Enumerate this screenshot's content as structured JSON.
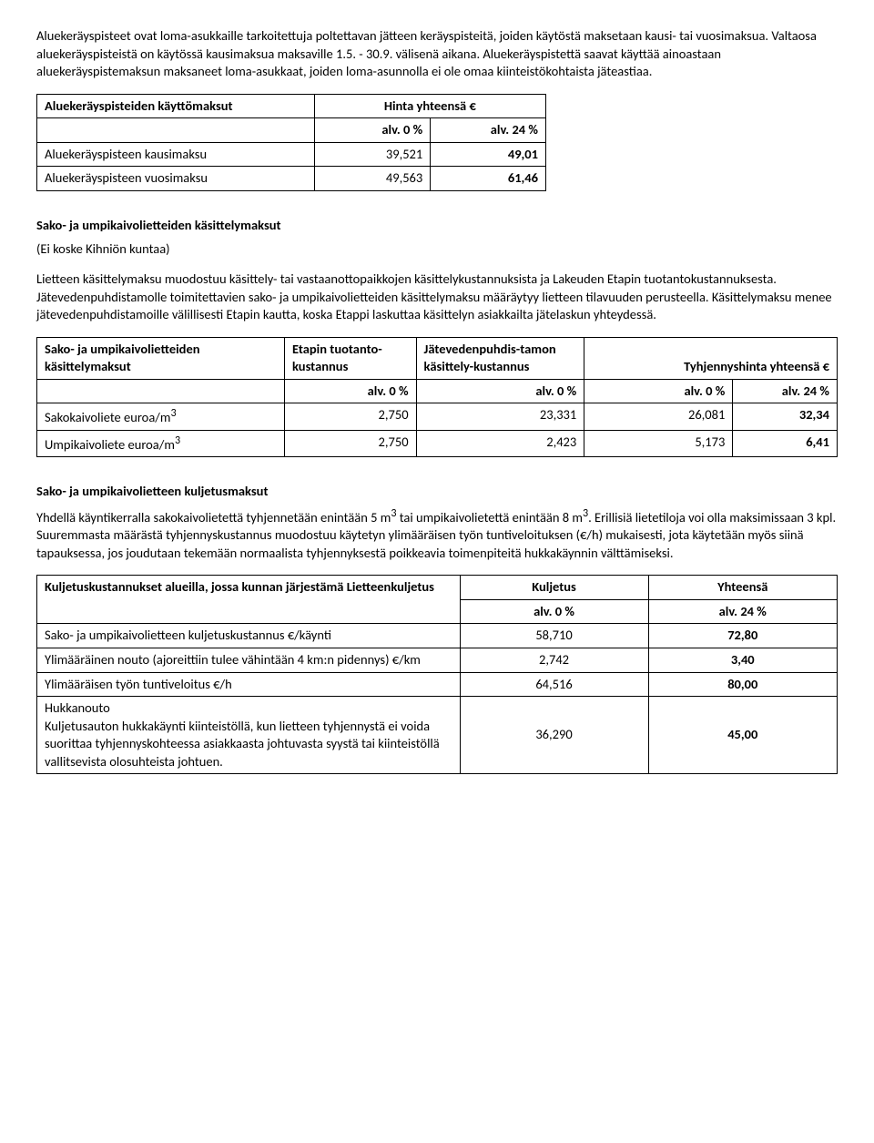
{
  "para1": "Aluekeräyspisteet ovat loma-asukkaille tarkoitettuja poltettavan jätteen keräyspisteitä, joiden käytöstä maksetaan kausi- tai vuosimaksua. Valtaosa aluekeräyspisteistä on käytössä kausimaksua maksaville 1.5. - 30.9. välisenä aikana. Aluekeräyspistettä saavat käyttää ainoastaan aluekeräyspistemaksun maksaneet loma-asukkaat, joiden loma-asunnolla ei ole omaa kiinteistökohtaista jäteastiaa.",
  "table1": {
    "h_a": "Aluekeräyspisteiden käyttömaksut",
    "h_b": "Hinta yhteensä €",
    "alv0": "alv. 0 %",
    "alv24": "alv. 24 %",
    "r1_label": "Aluekeräyspisteen kausimaksu",
    "r1_v0": "39,521",
    "r1_v24": "49,01",
    "r2_label": "Aluekeräyspisteen vuosimaksu",
    "r2_v0": "49,563",
    "r2_v24": "61,46"
  },
  "sec2_title": "Sako- ja umpikaivolietteiden käsittelymaksut",
  "sec2_sub": "(Ei koske Kihniön kuntaa)",
  "sec2_para": "Lietteen käsittelymaksu muodostuu käsittely- tai vastaanottopaikkojen käsittelykustannuksista ja Lakeuden Etapin tuotantokustannuksesta. Jätevedenpuhdistamolle toimitettavien sako- ja umpikaivolietteiden käsittelymaksu määräytyy lietteen tilavuuden perusteella. Käsittelymaksu menee jätevedenpuhdistamoille välillisesti Etapin kautta, koska Etappi laskuttaa käsittelyn asiakkailta jätelaskun yhteydessä.",
  "table2": {
    "h_a": "Sako- ja umpikaivolietteiden käsittelymaksut",
    "h_b": "Etapin tuotanto-kustannus",
    "h_c": "Jätevedenpuhdis-tamon käsittely-kustannus",
    "h_d": "Tyhjennyshinta yhteensä €",
    "alv0": "alv. 0 %",
    "alv24": "alv. 24 %",
    "r1_label_a": "Sakokaivoliete euroa/m",
    "r1_label_sup": "3",
    "r1_v1": "2,750",
    "r1_v2": "23,331",
    "r1_v3": "26,081",
    "r1_v4": "32,34",
    "r2_label_a": "Umpikaivoliete euroa/m",
    "r2_label_sup": "3",
    "r2_v1": "2,750",
    "r2_v2": "2,423",
    "r2_v3": "5,173",
    "r2_v4": "6,41"
  },
  "sec3_title": "Sako- ja umpikaivolietteen kuljetusmaksut",
  "sec3_para_a": "Yhdellä käyntikerralla sakokaivolietettä tyhjennetään enintään 5 m",
  "sec3_para_sup1": "3",
  "sec3_para_b": " tai umpikaivolietettä enintään 8 m",
  "sec3_para_sup2": "3",
  "sec3_para_c": ". Erillisiä lietetiloja voi olla maksimissaan 3 kpl. Suuremmasta määrästä tyhjennyskustannus muodostuu käytetyn ylimääräisen työn tuntiveloituksen (€/h) mukaisesti, jota käytetään myös siinä tapauksessa, jos joudutaan tekemään normaalista tyhjennyksestä poikkeavia toimenpiteitä hukkakäynnin välttämiseksi.",
  "table3": {
    "h_a": "Kuljetuskustannukset alueilla, jossa kunnan järjestämä Lietteenkuljetus",
    "h_b": "Kuljetus",
    "h_c": "Yhteensä",
    "alv0": "alv. 0 %",
    "alv24": "alv. 24 %",
    "r1_label": "Sako- ja umpikaivolietteen kuljetuskustannus €/käynti",
    "r1_v1": "58,710",
    "r1_v2": "72,80",
    "r2_label": "Ylimääräinen nouto (ajoreittiin tulee vähintään 4 km:n pidennys) €/km",
    "r2_v1": "2,742",
    "r2_v2": "3,40",
    "r3_label": "Ylimääräisen työn tuntiveloitus €/h",
    "r3_v1": "64,516",
    "r3_v2": "80,00",
    "r4_label": "Hukkanouto\nKuljetusauton hukkakäynti kiinteistöllä, kun lietteen tyhjennystä ei voida suorittaa tyhjennyskohteessa asiakkaasta johtuvasta syystä tai kiinteistöllä vallitsevista olosuhteista johtuen.",
    "r4_v1": "36,290",
    "r4_v2": "45,00"
  }
}
